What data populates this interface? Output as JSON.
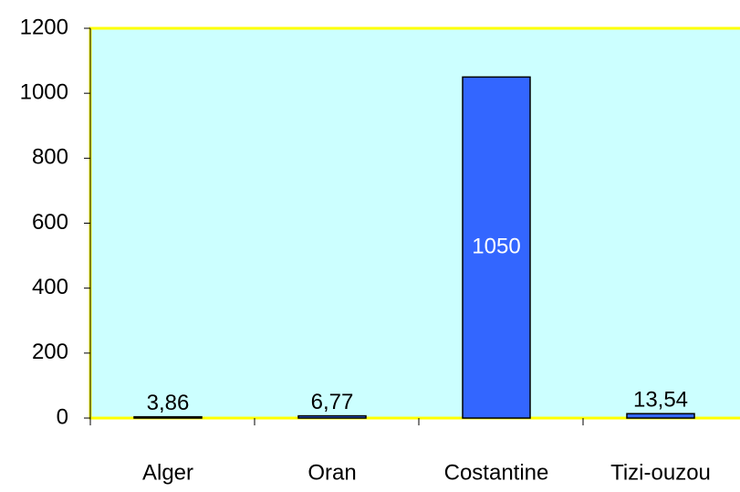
{
  "chart_data": {
    "type": "bar",
    "categories": [
      "Alger",
      "Oran",
      "Costantine",
      "Tizi-ouzou"
    ],
    "values": [
      3.86,
      6.77,
      1050,
      13.54
    ],
    "value_labels": [
      "3,86",
      "6,77",
      "1050",
      "13,54"
    ],
    "color": "#3366ff",
    "ylim": [
      0,
      1200
    ],
    "yticks": [
      0,
      200,
      400,
      600,
      800,
      1000,
      1200
    ]
  }
}
